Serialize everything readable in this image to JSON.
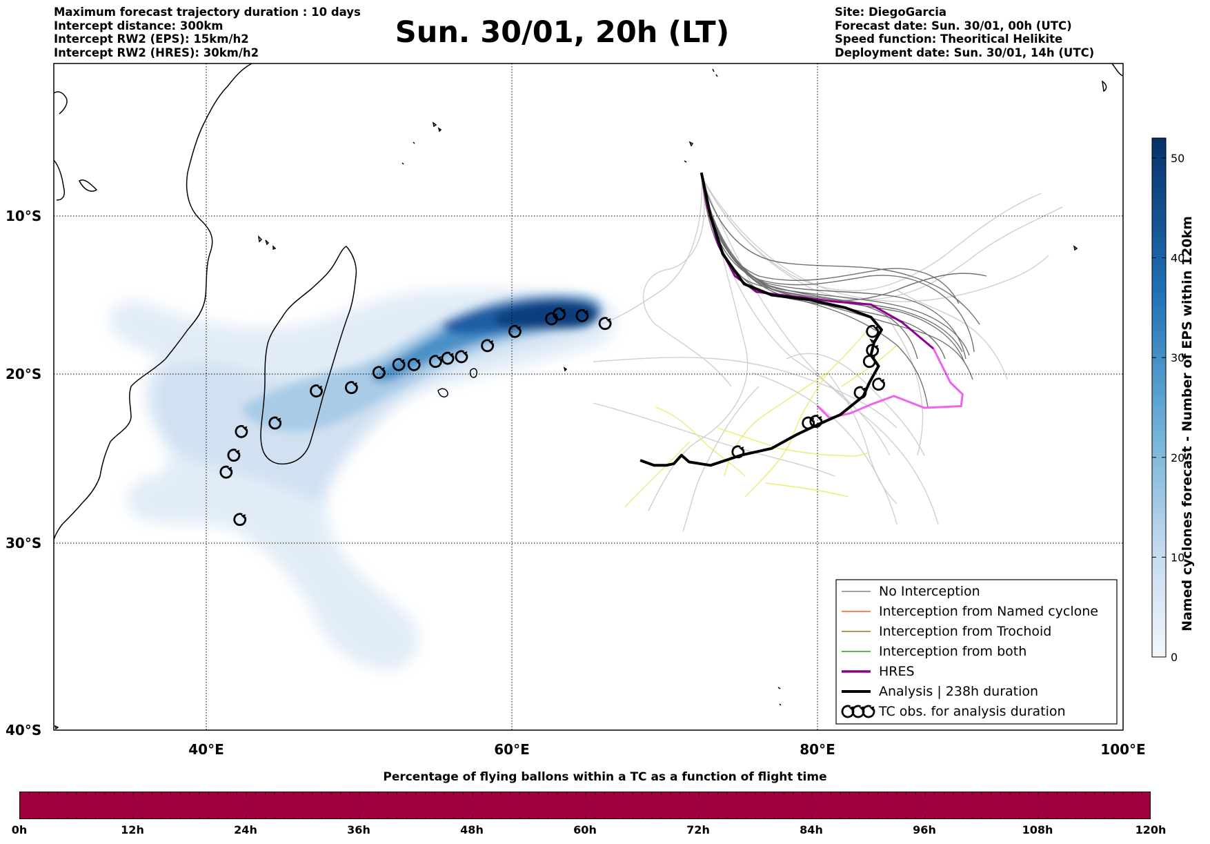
{
  "header": {
    "left_lines": [
      "Maximum forecast trajectory duration : 10 days",
      "Intercept distance: 300km",
      "Intercept RW2 (EPS):  15km/h2",
      "Intercept RW2 (HRES): 30km/h2"
    ],
    "title": "Sun. 30/01, 20h (LT)",
    "right_lines": [
      "Site: DiegoGarcia",
      "Forecast date: Sun. 30/01, 00h (UTC)",
      "Speed function: Theoritical Helikite",
      "Deployment date: Sun. 30/01, 14h (UTC)"
    ]
  },
  "map": {
    "extent": {
      "lon_min": 30,
      "lon_max": 100,
      "lat_min": -40,
      "lat_max": -0.5
    },
    "lat_ticks": [
      {
        "value": -10,
        "label": "10°S"
      },
      {
        "value": -20,
        "label": "20°S"
      },
      {
        "value": -30,
        "label": "30°S"
      },
      {
        "value": -40,
        "label": "40°S"
      }
    ],
    "lon_ticks": [
      {
        "value": 40,
        "label": "40°E"
      },
      {
        "value": 60,
        "label": "60°E"
      },
      {
        "value": 80,
        "label": "80°E"
      },
      {
        "value": 100,
        "label": "100°E"
      }
    ],
    "colors": {
      "no_interception": "#808080",
      "named_cyclone": "#ff5a1f",
      "trochoid": "#8a7a1a",
      "both": "#1f9a1f",
      "hres": "#8e008e",
      "analysis": "#000000",
      "light_trajectory": "#c8c8c8",
      "yellow_trajectory": "#ecec70",
      "hres_extension": "#ee62ee"
    },
    "site": {
      "name": "DiegoGarcia",
      "lon": 72.4,
      "lat": -7.3
    },
    "hres_track": [
      [
        72.4,
        -7.3
      ],
      [
        72.8,
        -9.4
      ],
      [
        73.5,
        -11.8
      ],
      [
        74.6,
        -13.8
      ],
      [
        76.0,
        -14.8
      ],
      [
        78.5,
        -15.1
      ],
      [
        81.0,
        -15.4
      ],
      [
        83.5,
        -15.6
      ],
      [
        85.5,
        -16.7
      ],
      [
        87.6,
        -18.4
      ]
    ],
    "hres_extension": [
      [
        87.6,
        -18.4
      ],
      [
        88.7,
        -20.5
      ],
      [
        89.5,
        -21.2
      ],
      [
        89.4,
        -21.9
      ],
      [
        87.0,
        -22.0
      ],
      [
        85.0,
        -21.3
      ],
      [
        83.5,
        -21.8
      ],
      [
        82.2,
        -22.3
      ],
      [
        80.8,
        -22.6
      ],
      [
        80.0,
        -21.9
      ]
    ],
    "analysis_track": [
      [
        72.4,
        -7.3
      ],
      [
        73.0,
        -10.0
      ],
      [
        73.8,
        -12.4
      ],
      [
        75.2,
        -14.3
      ],
      [
        77.0,
        -15.0
      ],
      [
        79.5,
        -15.3
      ],
      [
        81.8,
        -15.8
      ],
      [
        83.5,
        -16.4
      ],
      [
        84.2,
        -17.2
      ],
      [
        83.7,
        -18.0
      ],
      [
        83.5,
        -18.8
      ],
      [
        84.0,
        -19.5
      ],
      [
        83.4,
        -20.5
      ],
      [
        83.0,
        -21.3
      ],
      [
        81.5,
        -22.4
      ],
      [
        80.0,
        -23.0
      ],
      [
        78.6,
        -23.6
      ],
      [
        77.0,
        -24.4
      ],
      [
        75.0,
        -24.8
      ],
      [
        73.0,
        -25.4
      ],
      [
        71.6,
        -25.2
      ],
      [
        71.1,
        -24.8
      ],
      [
        70.6,
        -25.3
      ],
      [
        70.1,
        -25.4
      ],
      [
        69.3,
        -25.4
      ],
      [
        68.4,
        -25.1
      ]
    ],
    "tc_obs_lon_lat": [
      [
        66.1,
        -16.8
      ],
      [
        64.6,
        -16.3
      ],
      [
        63.1,
        -16.2
      ],
      [
        62.6,
        -16.5
      ],
      [
        60.2,
        -17.3
      ],
      [
        58.4,
        -18.2
      ],
      [
        56.7,
        -18.9
      ],
      [
        55.8,
        -19.0
      ],
      [
        55.0,
        -19.2
      ],
      [
        53.6,
        -19.4
      ],
      [
        52.6,
        -19.4
      ],
      [
        51.3,
        -19.9
      ],
      [
        49.5,
        -20.8
      ],
      [
        47.2,
        -21.0
      ],
      [
        44.5,
        -22.9
      ],
      [
        42.3,
        -23.4
      ],
      [
        41.8,
        -24.8
      ],
      [
        41.3,
        -25.8
      ],
      [
        42.2,
        -28.6
      ],
      [
        74.8,
        -24.6
      ],
      [
        79.4,
        -22.9
      ],
      [
        79.9,
        -22.8
      ],
      [
        82.8,
        -21.1
      ],
      [
        84.0,
        -20.6
      ],
      [
        83.4,
        -19.2
      ],
      [
        83.6,
        -18.5
      ],
      [
        83.6,
        -17.3
      ]
    ]
  },
  "colorbar": {
    "label": "Named cyclones forecast - Number of EPS within 120km",
    "ticks": [
      {
        "value": 0,
        "label": "0"
      },
      {
        "value": 10,
        "label": "10"
      },
      {
        "value": 20,
        "label": "20"
      },
      {
        "value": 30,
        "label": "30"
      },
      {
        "value": 40,
        "label": "40"
      },
      {
        "value": 50,
        "label": "50"
      }
    ],
    "min": 0,
    "max": 52,
    "color_low": "#e3edf8",
    "color_high": "#08306b"
  },
  "legend": {
    "items": [
      {
        "label": "No Interception",
        "key": "no_interception"
      },
      {
        "label": "Interception from Named cyclone",
        "key": "named_cyclone"
      },
      {
        "label": "Interception from Trochoid",
        "key": "trochoid"
      },
      {
        "label": "Interception from both",
        "key": "both"
      },
      {
        "label": "HRES",
        "key": "hres"
      },
      {
        "label": "Analysis | 238h duration",
        "key": "analysis"
      },
      {
        "label": "TC obs. for analysis duration",
        "key": "tc_obs"
      }
    ]
  },
  "bottom": {
    "title": "Percentage of flying ballons within a TC as a function of flight time",
    "bar_color": "#a0003e",
    "time_ticks": [
      "0h",
      "12h",
      "24h",
      "36h",
      "48h",
      "60h",
      "72h",
      "84h",
      "96h",
      "108h",
      "120h"
    ]
  }
}
